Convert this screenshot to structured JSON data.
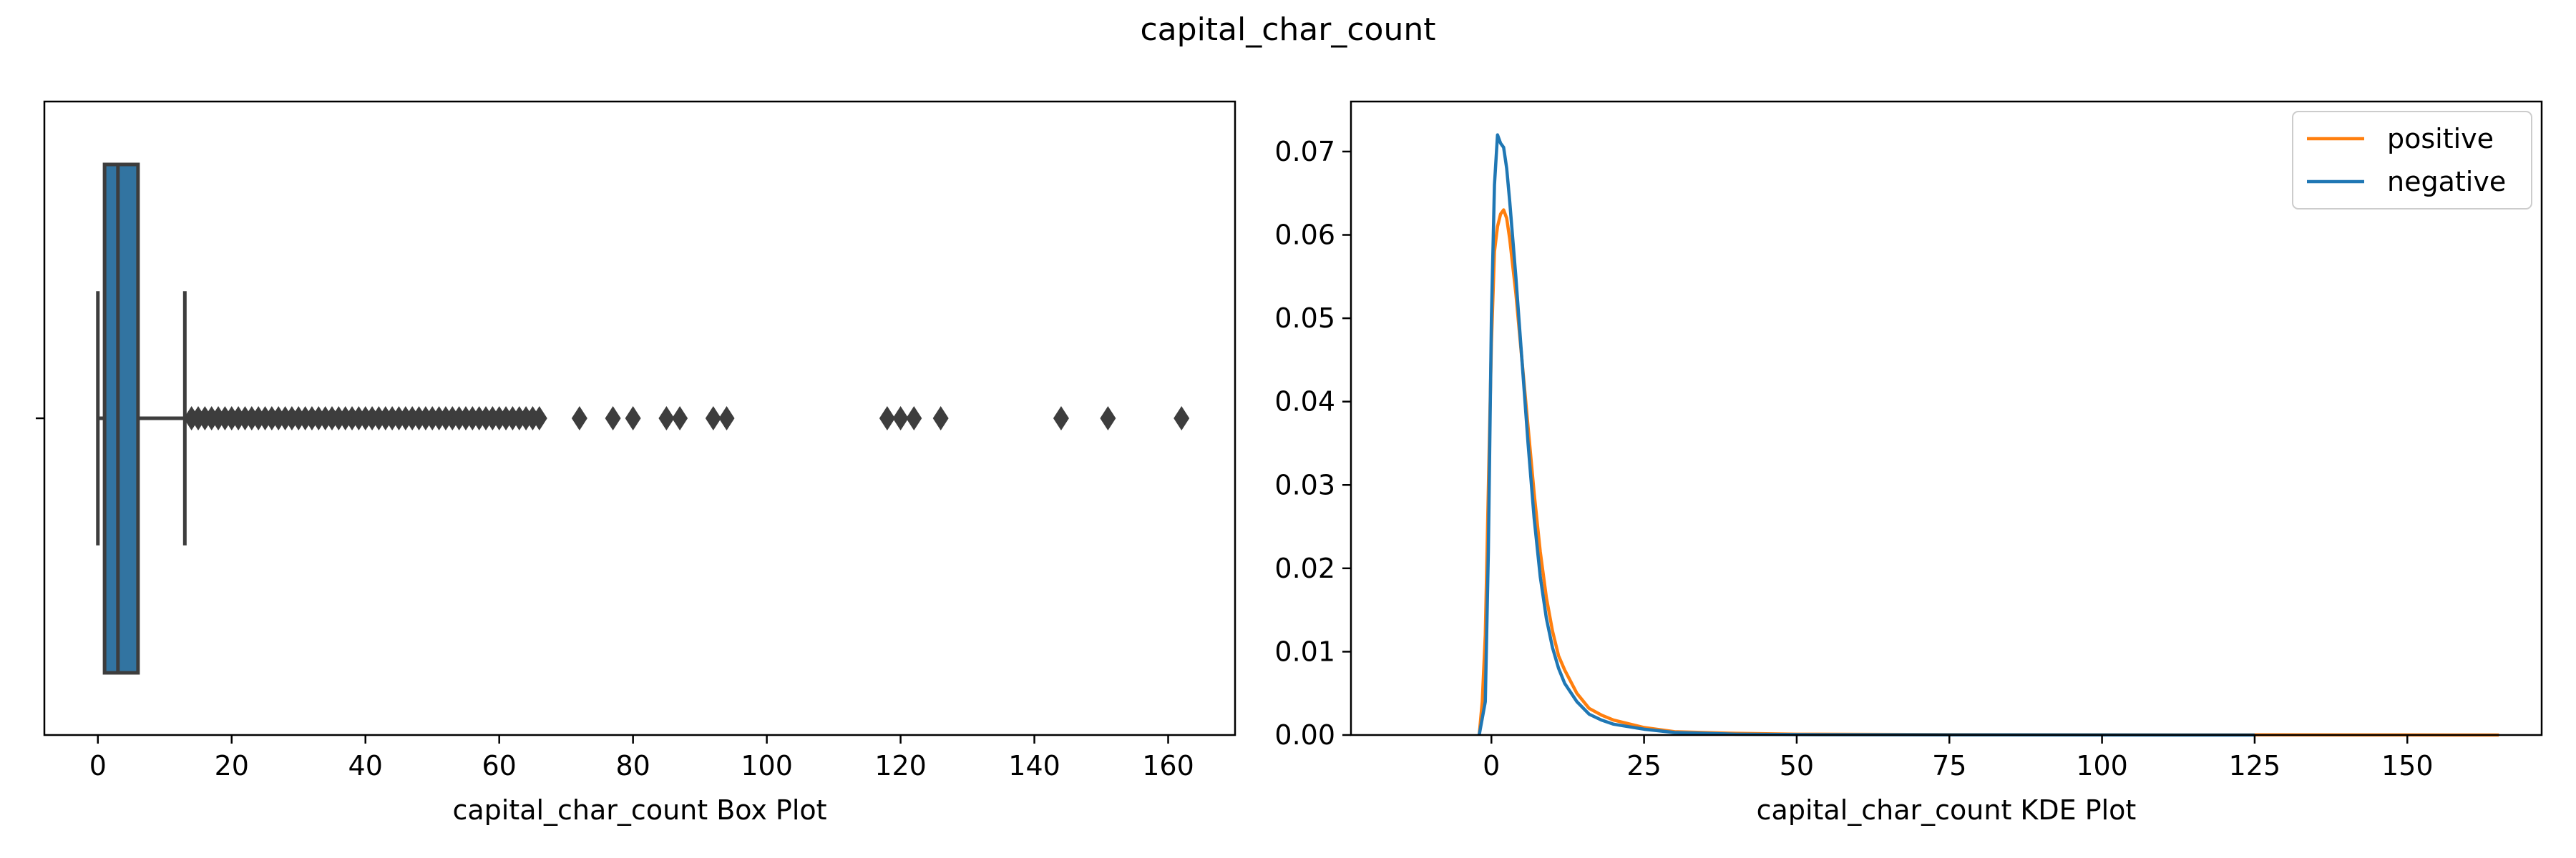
{
  "figure": {
    "suptitle": "capital_char_count"
  },
  "colors": {
    "box_fill": "#3274a1",
    "box_line": "#3d3d3d",
    "positive": "#ff7f0e",
    "negative": "#1f77b4"
  },
  "chart_data": [
    {
      "type": "box",
      "title": "",
      "xlabel": "capital_char_count Box Plot",
      "ylabel": "",
      "xlim": [
        -8,
        170
      ],
      "xticks": [
        0,
        20,
        40,
        60,
        80,
        100,
        120,
        140,
        160
      ],
      "xtick_labels": [
        "0",
        "20",
        "40",
        "60",
        "80",
        "100",
        "120",
        "140",
        "160"
      ],
      "grid": false,
      "box": {
        "whisker_low": 0,
        "q1": 1,
        "median": 3,
        "q3": 6,
        "whisker_high": 13
      },
      "outliers": [
        14,
        15,
        16,
        17,
        18,
        19,
        20,
        21,
        22,
        23,
        24,
        25,
        26,
        27,
        28,
        29,
        30,
        31,
        32,
        33,
        34,
        35,
        36,
        37,
        38,
        39,
        40,
        41,
        42,
        43,
        44,
        45,
        46,
        47,
        48,
        49,
        50,
        51,
        52,
        53,
        54,
        55,
        56,
        57,
        58,
        59,
        60,
        61,
        62,
        63,
        64,
        65,
        66,
        72,
        77,
        80,
        85,
        87,
        92,
        94,
        118,
        120,
        122,
        126,
        144,
        151,
        162
      ]
    },
    {
      "type": "line",
      "title": "",
      "xlabel": "capital_char_count KDE Plot",
      "ylabel": "",
      "xlim": [
        -23,
        172
      ],
      "ylim": [
        0,
        0.076
      ],
      "xticks": [
        0,
        25,
        50,
        75,
        100,
        125,
        150
      ],
      "xtick_labels": [
        "0",
        "25",
        "50",
        "75",
        "100",
        "125",
        "150"
      ],
      "yticks": [
        0,
        0.01,
        0.02,
        0.03,
        0.04,
        0.05,
        0.06,
        0.07
      ],
      "ytick_labels": [
        "0.00",
        "0.01",
        "0.02",
        "0.03",
        "0.04",
        "0.05",
        "0.06",
        "0.07"
      ],
      "grid": false,
      "legend": {
        "position": "top-right",
        "entries": [
          "positive",
          "negative"
        ]
      },
      "series": [
        {
          "name": "positive",
          "x": [
            -2,
            -1.5,
            -1,
            0,
            0.5,
            1,
            1.5,
            2,
            2.5,
            3,
            4,
            5,
            6,
            7,
            8,
            9,
            10,
            11,
            12,
            14,
            16,
            18,
            20,
            25,
            30,
            40,
            50,
            75,
            100,
            125,
            150,
            165
          ],
          "y": [
            0,
            0.004,
            0.012,
            0.047,
            0.058,
            0.061,
            0.0625,
            0.063,
            0.062,
            0.0595,
            0.053,
            0.045,
            0.037,
            0.029,
            0.022,
            0.0165,
            0.0125,
            0.0095,
            0.0078,
            0.005,
            0.0032,
            0.0024,
            0.0018,
            0.0009,
            0.0004,
            0.0002,
            0.0001,
            5e-05,
            3e-05,
            2e-05,
            1e-05,
            0
          ]
        },
        {
          "name": "negative",
          "x": [
            -2,
            -1.5,
            -1,
            -0.5,
            0,
            0.5,
            1,
            1.5,
            2,
            2.5,
            3,
            4,
            5,
            6,
            7,
            8,
            9,
            10,
            11,
            12,
            14,
            16,
            18,
            20,
            25,
            30,
            40,
            50,
            75,
            100,
            125
          ],
          "y": [
            0,
            0.002,
            0.004,
            0.022,
            0.05,
            0.066,
            0.072,
            0.071,
            0.0705,
            0.068,
            0.064,
            0.055,
            0.045,
            0.035,
            0.026,
            0.019,
            0.014,
            0.0105,
            0.008,
            0.0062,
            0.004,
            0.0025,
            0.0018,
            0.0013,
            0.0007,
            0.0003,
            0.0001,
            5e-05,
            2e-05,
            1e-05,
            0
          ]
        }
      ]
    }
  ]
}
